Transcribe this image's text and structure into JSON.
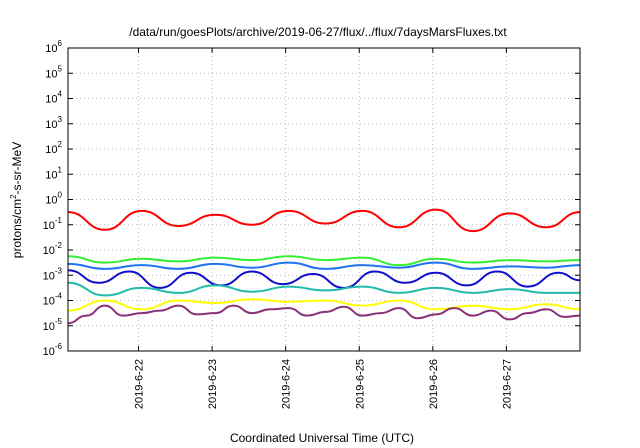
{
  "chart_data": {
    "type": "line",
    "title": "/data/run/goesPlots/archive/2019-06-27/flux/../flux/7daysMarsFluxes.txt",
    "xlabel": "Coordinated Universal Time (UTC)",
    "ylabel": "protons/cm2-s-sr-MeV",
    "ylabel_parts": {
      "pre": "protons/cm",
      "sup": "2",
      "post": "-s-sr-MeV"
    },
    "yscale": "log",
    "ylim_exp": [
      -6,
      6
    ],
    "y_tick_exponents": [
      -6,
      -5,
      -4,
      -3,
      -2,
      -1,
      0,
      1,
      2,
      3,
      4,
      5,
      6
    ],
    "y_tick_base": "10",
    "xlim_days": [
      "2019-06-21T01:00",
      "2019-06-28T00:00"
    ],
    "x_tick_labels": [
      "2019-6-22",
      "2019-6-23",
      "2019-6-24",
      "2019-6-25",
      "2019-6-26",
      "2019-6-27"
    ],
    "grid": true,
    "series": [
      {
        "color": "#ff0000",
        "x_hours": [
          0,
          12,
          24,
          36,
          48,
          60,
          72,
          84,
          96,
          108,
          120,
          132,
          144,
          156,
          167
        ],
        "log10_values": [
          -0.5,
          -1.2,
          -0.45,
          -1.05,
          -0.6,
          -1.0,
          -0.45,
          -0.95,
          -0.45,
          -1.1,
          -0.4,
          -1.25,
          -0.55,
          -1.1,
          -0.5
        ]
      },
      {
        "color": "#33ee33",
        "x_hours": [
          0,
          12,
          24,
          36,
          48,
          60,
          72,
          84,
          96,
          108,
          120,
          132,
          144,
          156,
          167
        ],
        "log10_values": [
          -2.25,
          -2.5,
          -2.35,
          -2.45,
          -2.3,
          -2.4,
          -2.25,
          -2.4,
          -2.3,
          -2.6,
          -2.35,
          -2.5,
          -2.4,
          -2.45,
          -2.4
        ]
      },
      {
        "color": "#1e73f0",
        "x_hours": [
          0,
          12,
          24,
          36,
          48,
          60,
          72,
          84,
          96,
          108,
          120,
          132,
          144,
          156,
          167
        ],
        "log10_values": [
          -2.55,
          -2.75,
          -2.6,
          -2.75,
          -2.55,
          -2.7,
          -2.5,
          -2.75,
          -2.6,
          -2.7,
          -2.5,
          -2.75,
          -2.65,
          -2.7,
          -2.6
        ]
      },
      {
        "color": "#1010cc",
        "x_hours": [
          0,
          10,
          20,
          30,
          40,
          50,
          60,
          70,
          80,
          90,
          100,
          110,
          120,
          130,
          140,
          150,
          160,
          167
        ],
        "log10_values": [
          -2.8,
          -3.3,
          -2.85,
          -3.5,
          -2.9,
          -3.4,
          -2.85,
          -3.35,
          -2.95,
          -3.5,
          -2.85,
          -3.3,
          -2.9,
          -3.4,
          -2.85,
          -3.45,
          -2.9,
          -3.2
        ]
      },
      {
        "color": "#22bbaa",
        "x_hours": [
          0,
          12,
          24,
          36,
          48,
          60,
          72,
          84,
          96,
          108,
          120,
          132,
          144,
          156,
          167
        ],
        "log10_values": [
          -3.3,
          -3.8,
          -3.5,
          -3.7,
          -3.4,
          -3.65,
          -3.45,
          -3.6,
          -3.45,
          -3.7,
          -3.5,
          -3.7,
          -3.55,
          -3.7,
          -3.7
        ]
      },
      {
        "color": "#ffff00",
        "x_hours": [
          0,
          12,
          24,
          36,
          48,
          60,
          72,
          84,
          96,
          108,
          120,
          132,
          144,
          156,
          167
        ],
        "log10_values": [
          -4.4,
          -4.0,
          -4.35,
          -4.0,
          -4.1,
          -3.95,
          -4.05,
          -4.0,
          -4.2,
          -4.0,
          -4.35,
          -4.2,
          -4.35,
          -4.15,
          -4.35
        ]
      },
      {
        "color": "#883377",
        "x_hours": [
          0,
          6,
          12,
          18,
          24,
          30,
          36,
          42,
          48,
          54,
          60,
          66,
          72,
          78,
          84,
          90,
          96,
          102,
          108,
          114,
          120,
          126,
          132,
          138,
          144,
          150,
          156,
          162,
          167
        ],
        "log10_values": [
          -4.9,
          -4.6,
          -4.2,
          -4.6,
          -4.5,
          -4.4,
          -4.2,
          -4.55,
          -4.5,
          -4.2,
          -4.5,
          -4.35,
          -4.3,
          -4.6,
          -4.45,
          -4.25,
          -4.6,
          -4.5,
          -4.3,
          -4.7,
          -4.55,
          -4.3,
          -4.6,
          -4.4,
          -4.75,
          -4.5,
          -4.35,
          -4.65,
          -4.6
        ]
      }
    ]
  }
}
